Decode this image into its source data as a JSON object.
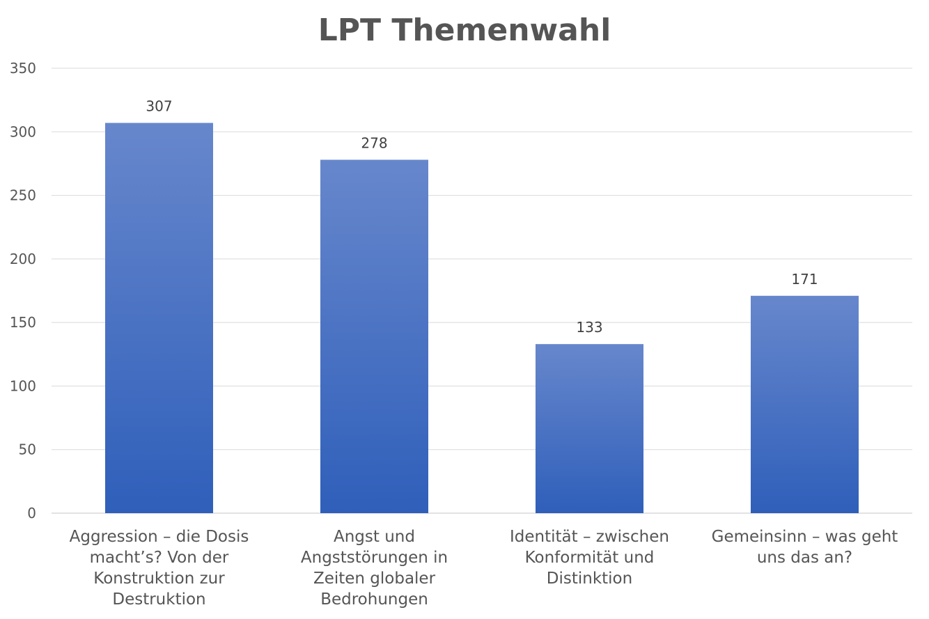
{
  "chart_data": {
    "type": "bar",
    "title": "LPT Themenwahl",
    "xlabel": "",
    "ylabel": "",
    "categories": [
      "Aggression – die Dosis macht’s? Von der Konstruktion zur Destruktion",
      "Angst und Angststörungen in Zeiten globaler Bedrohungen",
      "Identität – zwischen Konformität und Distinktion",
      "Gemeinsinn – was geht uns das an?"
    ],
    "category_lines": [
      [
        "Aggression – die Dosis",
        "macht’s? Von der",
        "Konstruktion zur",
        "Destruktion"
      ],
      [
        "Angst und",
        "Angststörungen in",
        "Zeiten globaler",
        "Bedrohungen"
      ],
      [
        "Identität – zwischen",
        "Konformität und",
        "Distinktion"
      ],
      [
        "Gemeinsinn – was geht",
        "uns das an?"
      ]
    ],
    "values": [
      307,
      278,
      133,
      171
    ],
    "ylim": [
      0,
      350
    ],
    "yticks": [
      0,
      50,
      100,
      150,
      200,
      250,
      300,
      350
    ],
    "grid": true,
    "legend": "none",
    "colors": {
      "bar_top": "#6787cc",
      "bar_bottom": "#2f5fba",
      "grid": "#d9d9d9",
      "title": "#555555"
    }
  }
}
